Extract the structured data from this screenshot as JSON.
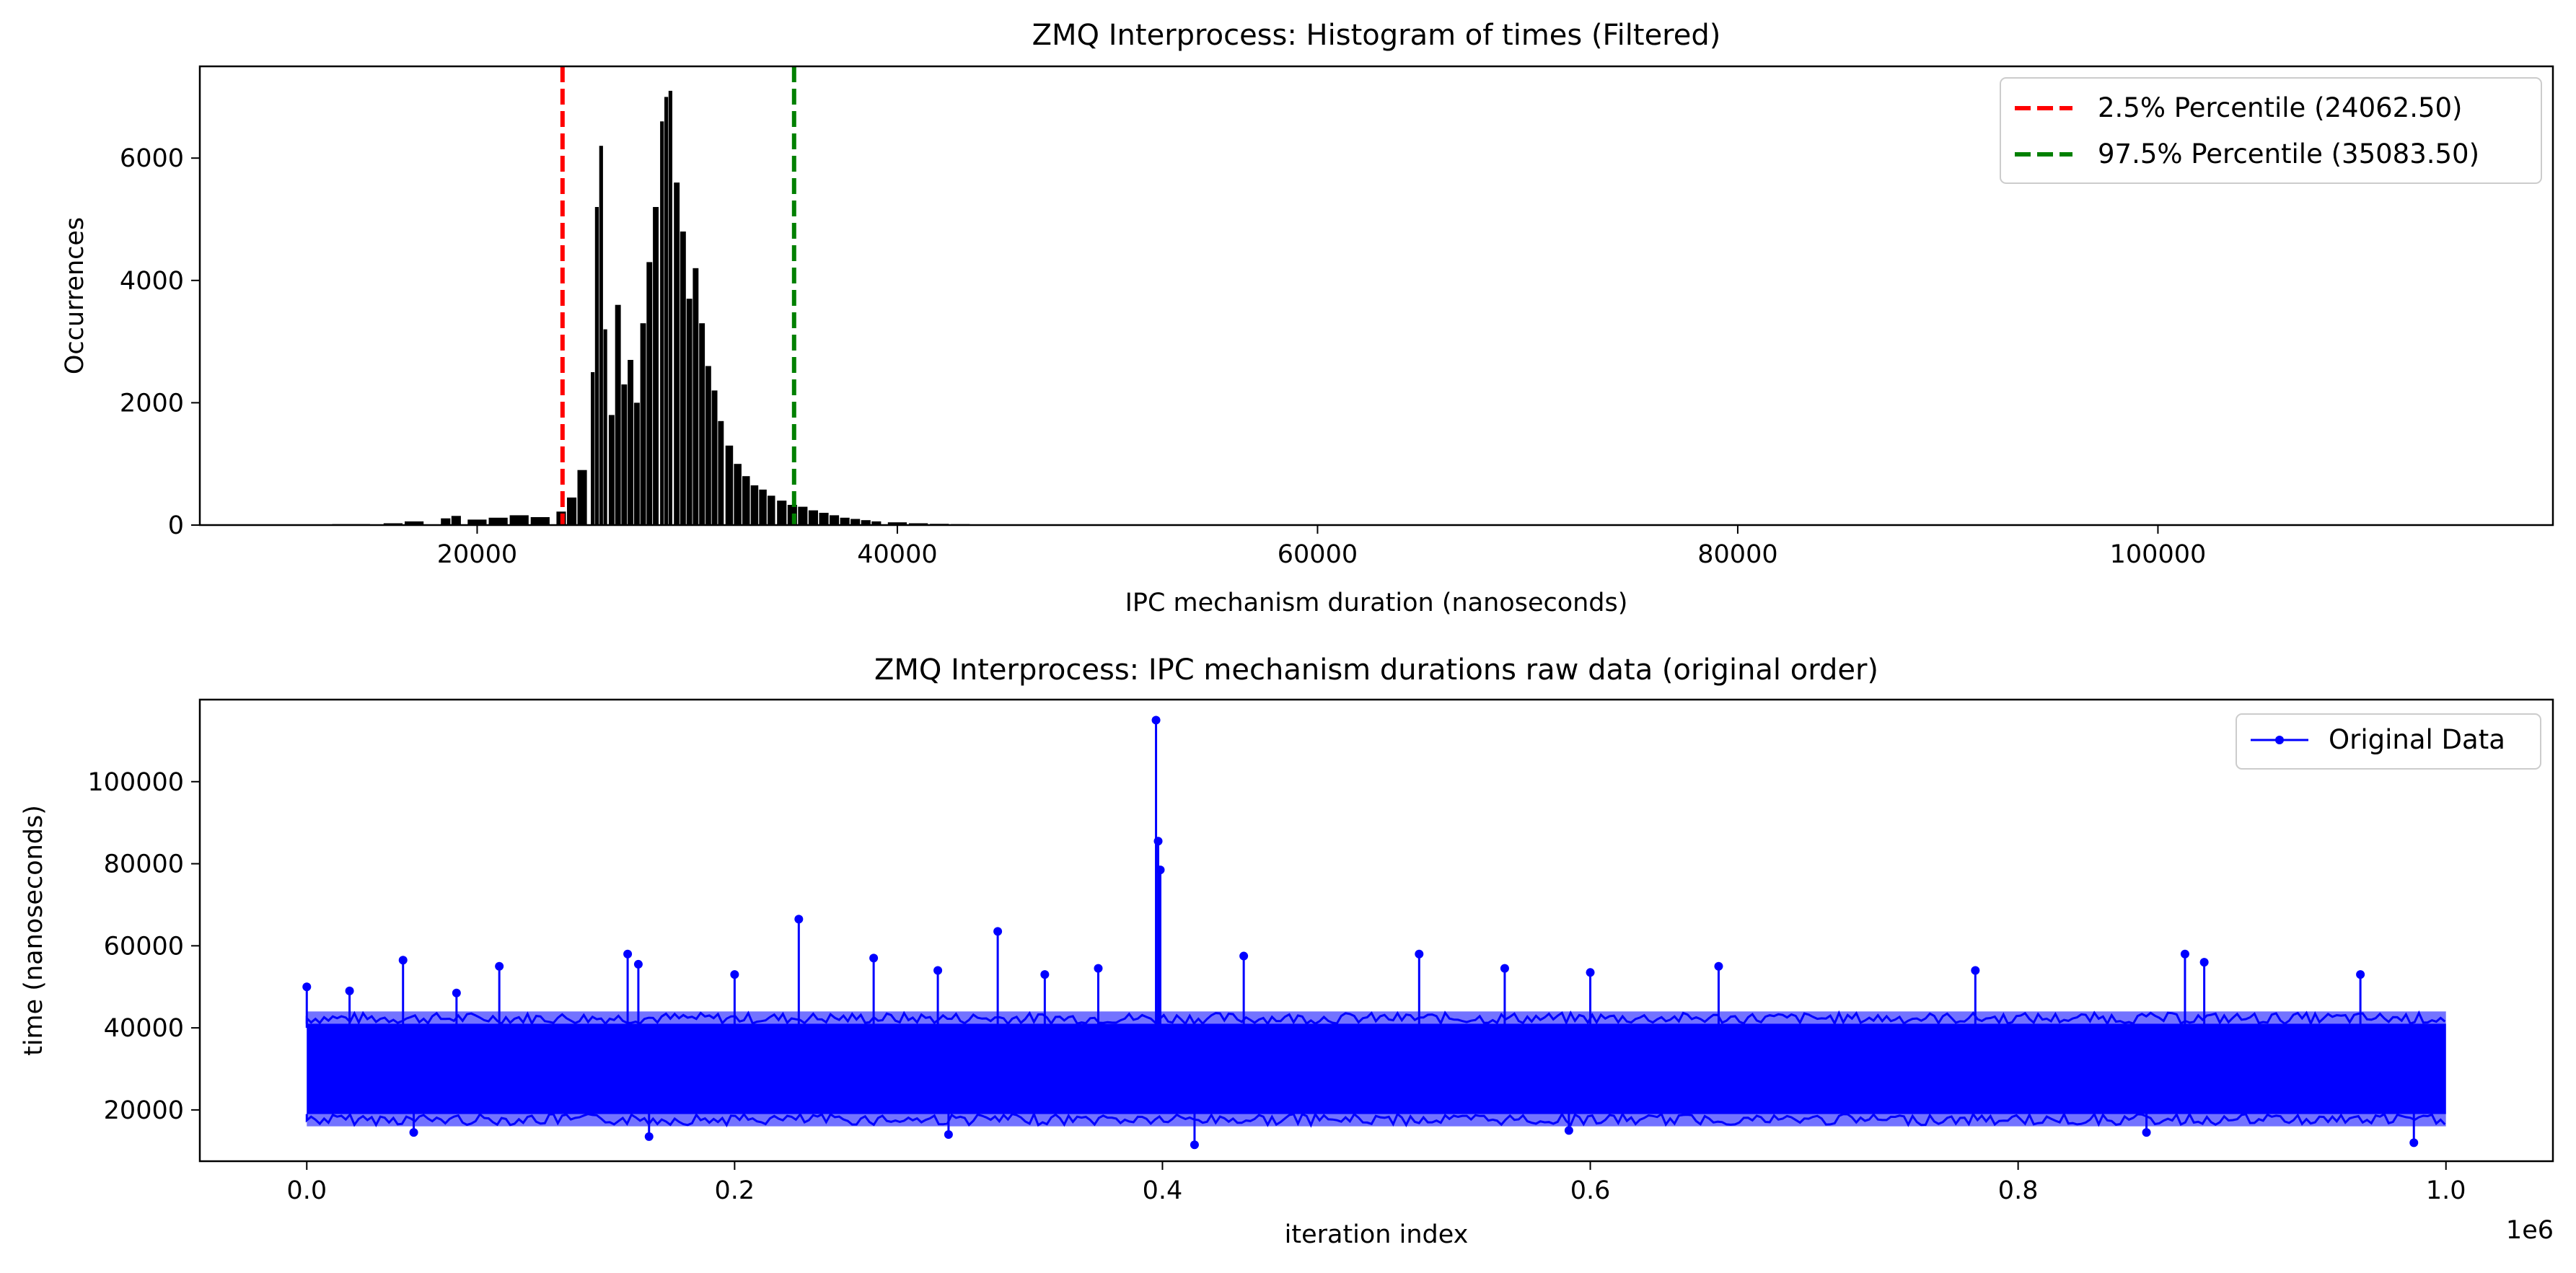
{
  "chart_data": [
    {
      "type": "histogram",
      "title": "ZMQ Interprocess: Histogram of times (Filtered)",
      "xlabel": "IPC mechanism duration (nanoseconds)",
      "ylabel": "Occurrences",
      "xlim": [
        6800,
        118800
      ],
      "ylim": [
        0,
        7500
      ],
      "xticks": [
        20000,
        40000,
        60000,
        80000,
        100000
      ],
      "yticks": [
        0,
        2000,
        4000,
        6000
      ],
      "grid": false,
      "legend_position": "upper-right",
      "bar_color": "#000000",
      "bins": [
        [
          12000,
          5
        ],
        [
          14000,
          15
        ],
        [
          16000,
          30
        ],
        [
          17000,
          60
        ],
        [
          18500,
          110
        ],
        [
          19000,
          150
        ],
        [
          20000,
          90
        ],
        [
          21000,
          120
        ],
        [
          22000,
          160
        ],
        [
          23000,
          130
        ],
        [
          24000,
          220
        ],
        [
          24500,
          450
        ],
        [
          25000,
          900
        ],
        [
          25500,
          2500
        ],
        [
          25700,
          5200
        ],
        [
          25900,
          6200
        ],
        [
          26100,
          3200
        ],
        [
          26400,
          1800
        ],
        [
          26700,
          3600
        ],
        [
          27000,
          2300
        ],
        [
          27300,
          2700
        ],
        [
          27600,
          2000
        ],
        [
          27900,
          3300
        ],
        [
          28200,
          4300
        ],
        [
          28500,
          5200
        ],
        [
          28800,
          6600
        ],
        [
          29000,
          7000
        ],
        [
          29200,
          7100
        ],
        [
          29500,
          5600
        ],
        [
          29800,
          4800
        ],
        [
          30100,
          3700
        ],
        [
          30400,
          4200
        ],
        [
          30700,
          3300
        ],
        [
          31000,
          2600
        ],
        [
          31300,
          2200
        ],
        [
          31600,
          1700
        ],
        [
          32000,
          1300
        ],
        [
          32400,
          1000
        ],
        [
          32800,
          800
        ],
        [
          33200,
          650
        ],
        [
          33600,
          580
        ],
        [
          34000,
          480
        ],
        [
          34500,
          400
        ],
        [
          35000,
          330
        ],
        [
          35500,
          300
        ],
        [
          36000,
          240
        ],
        [
          36500,
          200
        ],
        [
          37000,
          160
        ],
        [
          37500,
          120
        ],
        [
          38000,
          100
        ],
        [
          38500,
          80
        ],
        [
          39000,
          60
        ],
        [
          40000,
          45
        ],
        [
          41000,
          30
        ],
        [
          42000,
          20
        ],
        [
          43000,
          15
        ],
        [
          44000,
          12
        ],
        [
          45000,
          10
        ],
        [
          46000,
          8
        ],
        [
          47000,
          6
        ],
        [
          48000,
          5
        ],
        [
          50000,
          4
        ],
        [
          52000,
          3
        ],
        [
          55000,
          2
        ],
        [
          58000,
          1
        ]
      ],
      "vlines": [
        {
          "label": "2.5% Percentile (24062.50)",
          "x": 24062.5,
          "color": "#ff0000",
          "style": "dashed"
        },
        {
          "label": "97.5% Percentile (35083.50)",
          "x": 35083.5,
          "color": "#008000",
          "style": "dashed"
        }
      ]
    },
    {
      "type": "line",
      "title": "ZMQ Interprocess: IPC mechanism durations raw data (original order)",
      "xlabel": "iteration index",
      "ylabel": "time (nanoseconds)",
      "x_offset_text": "1e6",
      "xlim": [
        -50000,
        1050000
      ],
      "ylim": [
        7500,
        120000
      ],
      "xticks": [
        0,
        200000,
        400000,
        600000,
        800000,
        1000000
      ],
      "xtick_labels": [
        "0.0",
        "0.2",
        "0.4",
        "0.6",
        "0.8",
        "1.0"
      ],
      "yticks": [
        20000,
        40000,
        60000,
        80000,
        100000
      ],
      "grid": false,
      "legend_position": "upper-right",
      "series": [
        {
          "name": "Original Data",
          "color": "#0000ff",
          "marker": "dot",
          "band_low": 16000,
          "band_high": 44000,
          "dense_low": 19000,
          "dense_high": 41000,
          "x_range": [
            0,
            1000000
          ],
          "points": [
            [
              0,
              50000
            ],
            [
              20000,
              49000
            ],
            [
              45000,
              56500
            ],
            [
              70000,
              48500
            ],
            [
              90000,
              55000
            ],
            [
              150000,
              58000
            ],
            [
              155000,
              55500
            ],
            [
              200000,
              53000
            ],
            [
              230000,
              66500
            ],
            [
              265000,
              57000
            ],
            [
              295000,
              54000
            ],
            [
              323000,
              63500
            ],
            [
              345000,
              53000
            ],
            [
              370000,
              54500
            ],
            [
              397000,
              115000
            ],
            [
              398000,
              85500
            ],
            [
              399000,
              78500
            ],
            [
              438000,
              57500
            ],
            [
              520000,
              58000
            ],
            [
              560000,
              54500
            ],
            [
              600000,
              53500
            ],
            [
              660000,
              55000
            ],
            [
              780000,
              54000
            ],
            [
              878000,
              58000
            ],
            [
              887000,
              56000
            ],
            [
              960000,
              53000
            ],
            [
              415000,
              11500
            ],
            [
              160000,
              13500
            ],
            [
              985000,
              12000
            ],
            [
              300000,
              14000
            ],
            [
              50000,
              14500
            ],
            [
              590000,
              15000
            ],
            [
              860000,
              14500
            ]
          ]
        }
      ]
    }
  ]
}
